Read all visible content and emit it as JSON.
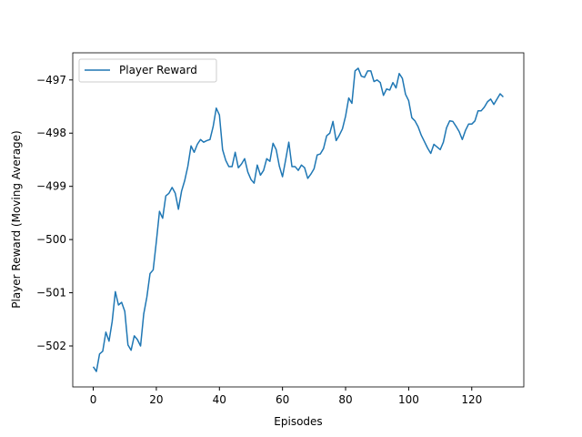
{
  "chart_data": {
    "type": "line",
    "xlabel": "Episodes",
    "ylabel": "Player Reward (Moving Average)",
    "x": [
      0,
      1,
      2,
      3,
      4,
      5,
      6,
      7,
      8,
      9,
      10,
      11,
      12,
      13,
      14,
      15,
      16,
      17,
      18,
      19,
      20,
      21,
      22,
      23,
      24,
      25,
      26,
      27,
      28,
      29,
      30,
      31,
      32,
      33,
      34,
      35,
      36,
      37,
      38,
      39,
      40,
      41,
      42,
      43,
      44,
      45,
      46,
      47,
      48,
      49,
      50,
      51,
      52,
      53,
      54,
      55,
      56,
      57,
      58,
      59,
      60,
      61,
      62,
      63,
      64,
      65,
      66,
      67,
      68,
      69,
      70,
      71,
      72,
      73,
      74,
      75,
      76,
      77,
      78,
      79,
      80,
      81,
      82,
      83,
      84,
      85,
      86,
      87,
      88,
      89,
      90,
      91,
      92,
      93,
      94,
      95,
      96,
      97,
      98,
      99,
      100,
      101,
      102,
      103,
      104,
      105,
      106,
      107,
      108,
      109,
      110,
      111,
      112,
      113,
      114,
      115,
      116,
      117,
      118,
      119,
      120,
      121,
      122,
      123,
      124,
      125,
      126,
      127,
      128,
      129,
      130
    ],
    "series": [
      {
        "name": "Player Reward",
        "color": "#1f77b4",
        "values": [
          -502.39,
          -502.48,
          -502.15,
          -502.1,
          -501.74,
          -501.91,
          -501.54,
          -500.98,
          -501.23,
          -501.18,
          -501.35,
          -501.98,
          -502.08,
          -501.81,
          -501.88,
          -502.0,
          -501.4,
          -501.08,
          -500.64,
          -500.57,
          -500.04,
          -499.47,
          -499.6,
          -499.18,
          -499.13,
          -499.02,
          -499.13,
          -499.43,
          -499.09,
          -498.89,
          -498.62,
          -498.24,
          -498.36,
          -498.21,
          -498.12,
          -498.17,
          -498.14,
          -498.12,
          -497.88,
          -497.53,
          -497.66,
          -498.31,
          -498.51,
          -498.63,
          -498.63,
          -498.36,
          -498.65,
          -498.58,
          -498.48,
          -498.73,
          -498.87,
          -498.94,
          -498.6,
          -498.79,
          -498.7,
          -498.48,
          -498.53,
          -498.19,
          -498.31,
          -498.62,
          -498.82,
          -498.5,
          -498.17,
          -498.63,
          -498.63,
          -498.7,
          -498.6,
          -498.65,
          -498.85,
          -498.77,
          -498.67,
          -498.41,
          -498.39,
          -498.29,
          -498.05,
          -498.0,
          -497.78,
          -498.14,
          -498.04,
          -497.92,
          -497.68,
          -497.34,
          -497.44,
          -496.83,
          -496.78,
          -496.93,
          -496.95,
          -496.83,
          -496.83,
          -497.03,
          -497.0,
          -497.05,
          -497.29,
          -497.17,
          -497.19,
          -497.05,
          -497.15,
          -496.88,
          -496.97,
          -497.27,
          -497.39,
          -497.71,
          -497.77,
          -497.88,
          -498.04,
          -498.16,
          -498.28,
          -498.38,
          -498.21,
          -498.26,
          -498.31,
          -498.17,
          -497.9,
          -497.77,
          -497.78,
          -497.87,
          -497.97,
          -498.12,
          -497.95,
          -497.83,
          -497.83,
          -497.77,
          -497.58,
          -497.58,
          -497.51,
          -497.41,
          -497.36,
          -497.46,
          -497.36,
          -497.26,
          -497.32
        ]
      }
    ],
    "xlim": [
      -6.5,
      136.5
    ],
    "ylim": [
      -502.77,
      -496.49
    ],
    "xticks": [
      0,
      20,
      40,
      60,
      80,
      100,
      120
    ],
    "yticks": [
      {
        "value": -502,
        "label": "−502"
      },
      {
        "value": -501,
        "label": "−501"
      },
      {
        "value": -500,
        "label": "−500"
      },
      {
        "value": -499,
        "label": "−499"
      },
      {
        "value": -498,
        "label": "−498"
      },
      {
        "value": -497,
        "label": "−497"
      }
    ],
    "legend": "upper left"
  }
}
